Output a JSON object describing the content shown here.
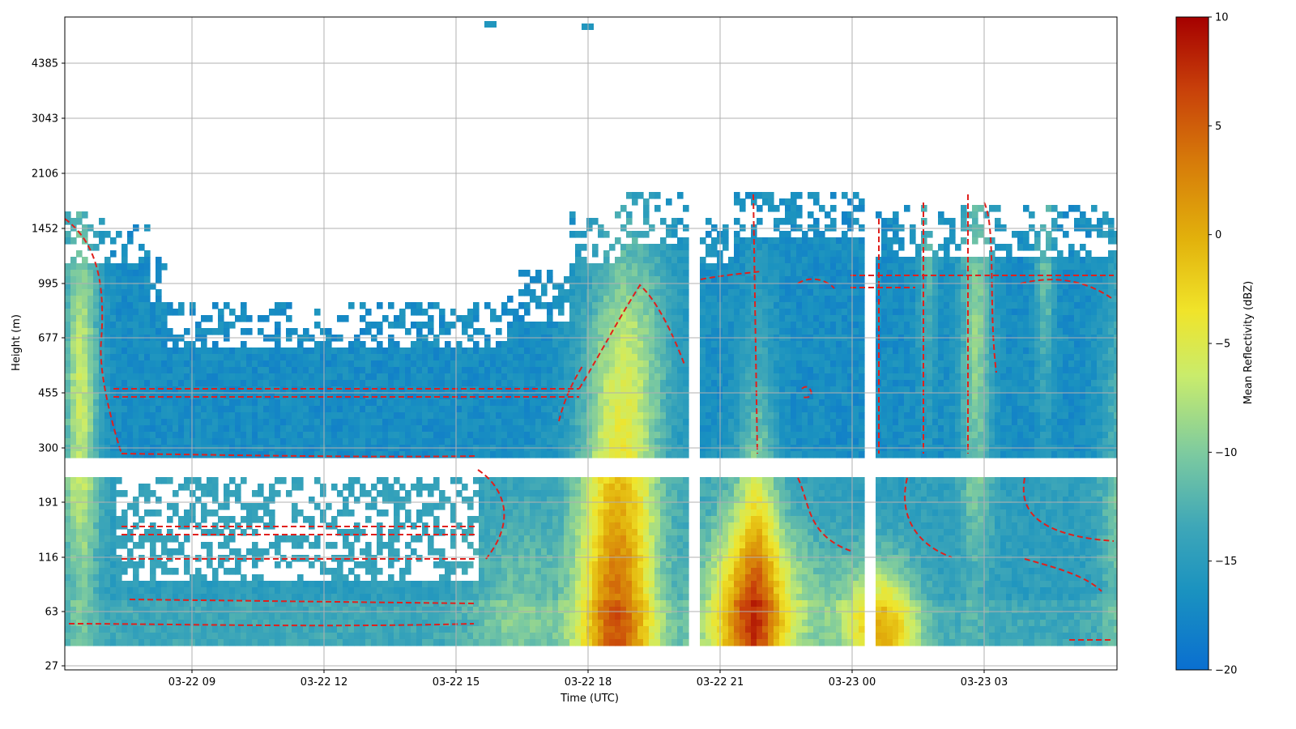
{
  "chart_data": {
    "type": "heatmap",
    "title": "",
    "xlabel": "Time (UTC)",
    "ylabel": "Height (m)",
    "x_ticks": [
      "03-22 09",
      "03-22 12",
      "03-22 15",
      "03-22 18",
      "03-22 21",
      "03-23 00",
      "03-23 03"
    ],
    "y_ticks": [
      "27",
      "63",
      "116",
      "191",
      "300",
      "455",
      "677",
      "995",
      "1452",
      "2106",
      "3043",
      "4385"
    ],
    "y_scale": "log",
    "grid": true,
    "colorbar": {
      "label": "Mean Reflectivity (dBZ)",
      "range": [
        -20,
        10
      ],
      "ticks": [
        "10",
        "5",
        "0",
        "−5",
        "−10",
        "−15",
        "−20"
      ],
      "colormap": [
        "#0a6fd0",
        "#1a92c0",
        "#3ea7b8",
        "#7ccaa0",
        "#c9ec6c",
        "#f0e42a",
        "#e2b10c",
        "#d67a0a",
        "#c8400a",
        "#a50000"
      ]
    },
    "contour": {
      "color": "#e0201c",
      "style": "dashed"
    },
    "features": [
      {
        "desc": "strong echo core",
        "time": "03-22 18:45",
        "height_m": 40,
        "dbz": 3
      },
      {
        "desc": "secondary core",
        "time": "03-22 21:45",
        "height_m": 50,
        "dbz": 1
      },
      {
        "desc": "weak core",
        "time": "03-23 00:30",
        "height_m": 50,
        "dbz": -4
      },
      {
        "desc": "cloud layer background",
        "height_range_m": [
          300,
          1452
        ],
        "dbz": -16
      }
    ]
  }
}
